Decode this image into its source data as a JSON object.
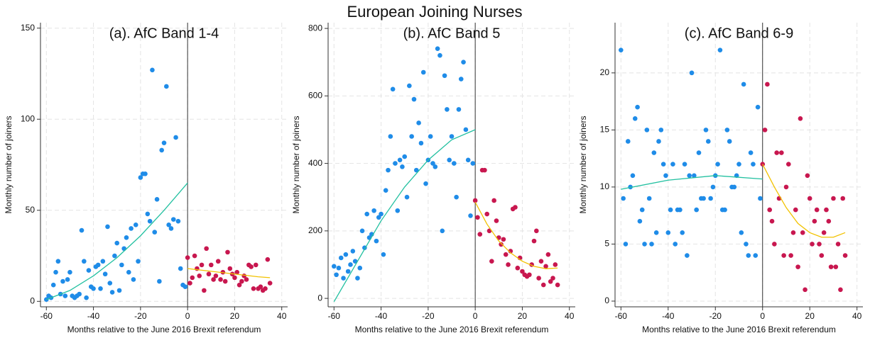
{
  "title": "European Joining Nurses",
  "chart_data": [
    {
      "type": "scatter",
      "title": "(a). AfC Band 1-4",
      "xlabel": "Months relative to the June 2016 Brexit referendum",
      "ylabel": "Monthly number of joiners",
      "xlim": [
        -62.5,
        42.5
      ],
      "ylim": [
        -3,
        153
      ],
      "xticks": [
        -60,
        -40,
        -20,
        0,
        20,
        40
      ],
      "yticks": [
        0,
        50,
        100,
        150
      ],
      "grid": true,
      "cutoff": 0,
      "series": [
        {
          "mark": "point",
          "color": "#1f8ce8",
          "x": [
            -60,
            -59,
            -58,
            -57,
            -56,
            -55,
            -54,
            -53,
            -52,
            -51,
            -50,
            -49,
            -48,
            -47,
            -46,
            -45,
            -44,
            -43,
            -42,
            -41,
            -40,
            -39,
            -38,
            -37,
            -36,
            -35,
            -34,
            -33,
            -32,
            -31,
            -30,
            -29,
            -28,
            -27,
            -26,
            -25,
            -24,
            -23,
            -22,
            -21,
            -20,
            -19,
            -18,
            -17,
            -16,
            -15,
            -14,
            -13,
            -12,
            -11,
            -10,
            -9,
            -8,
            -7,
            -6,
            -5,
            -4,
            -3,
            -2,
            -1
          ],
          "values": [
            1,
            3,
            2,
            9,
            16,
            22,
            4,
            11,
            3,
            12,
            16,
            3,
            2,
            3,
            4,
            39,
            22,
            2,
            17,
            8,
            7,
            19,
            20,
            7,
            22,
            15,
            41,
            10,
            5,
            25,
            32,
            6,
            20,
            29,
            35,
            16,
            40,
            12,
            42,
            22,
            68,
            70,
            70,
            48,
            44,
            127,
            38,
            56,
            11,
            83,
            87,
            118,
            42,
            40,
            45,
            90,
            44,
            18,
            9,
            8
          ]
        },
        {
          "mark": "point",
          "color": "#c8174f",
          "x": [
            0,
            1,
            2,
            3,
            4,
            5,
            6,
            7,
            8,
            9,
            10,
            11,
            12,
            13,
            14,
            15,
            16,
            17,
            18,
            19,
            20,
            21,
            22,
            23,
            24,
            25,
            26,
            27,
            28,
            29,
            30,
            31,
            32,
            33,
            34,
            35
          ],
          "values": [
            24,
            10,
            13,
            25,
            18,
            14,
            20,
            6,
            29,
            15,
            20,
            12,
            14,
            22,
            12,
            16,
            11,
            27,
            18,
            15,
            13,
            16,
            9,
            11,
            14,
            12,
            20,
            19,
            7,
            20,
            7,
            8,
            6,
            7,
            23,
            10
          ]
        },
        {
          "mark": "line",
          "color": "#22c0a0",
          "x": [
            -60,
            -50,
            -40,
            -30,
            -20,
            -10,
            0
          ],
          "values": [
            1,
            6,
            14,
            24,
            36,
            50,
            65
          ]
        },
        {
          "mark": "line",
          "color": "#f2c200",
          "x": [
            0,
            10,
            20,
            30,
            35
          ],
          "values": [
            18,
            16.5,
            15,
            13.5,
            13
          ]
        }
      ]
    },
    {
      "type": "scatter",
      "title": "(b). AfC Band 5",
      "xlabel": "Months relative to the June 2016 Brexit referendum",
      "ylabel": "Monthly number of joiners",
      "xlim": [
        -62.5,
        42.5
      ],
      "ylim": [
        -25,
        817
      ],
      "xticks": [
        -60,
        -40,
        -20,
        0,
        20,
        40
      ],
      "yticks": [
        0,
        200,
        400,
        600,
        800
      ],
      "grid": true,
      "cutoff": 0,
      "series": [
        {
          "mark": "point",
          "color": "#1f8ce8",
          "x": [
            -60,
            -59,
            -58,
            -57,
            -56,
            -55,
            -54,
            -53,
            -52,
            -51,
            -50,
            -49,
            -48,
            -47,
            -46,
            -45,
            -44,
            -43,
            -42,
            -41,
            -40,
            -39,
            -38,
            -37,
            -36,
            -35,
            -34,
            -33,
            -32,
            -31,
            -30,
            -29,
            -28,
            -27,
            -26,
            -25,
            -24,
            -23,
            -22,
            -21,
            -20,
            -19,
            -18,
            -17,
            -16,
            -15,
            -14,
            -13,
            -12,
            -11,
            -10,
            -9,
            -8,
            -7,
            -6,
            -5,
            -4,
            -3,
            -2,
            -1
          ],
          "values": [
            95,
            70,
            90,
            120,
            60,
            130,
            80,
            100,
            140,
            110,
            60,
            90,
            200,
            150,
            250,
            180,
            190,
            260,
            170,
            240,
            250,
            130,
            320,
            380,
            480,
            620,
            400,
            260,
            410,
            390,
            420,
            300,
            630,
            480,
            590,
            380,
            520,
            460,
            670,
            340,
            410,
            480,
            400,
            390,
            740,
            720,
            200,
            660,
            560,
            410,
            480,
            400,
            300,
            560,
            650,
            700,
            500,
            410,
            245,
            400
          ]
        },
        {
          "mark": "point",
          "color": "#c8174f",
          "x": [
            0,
            1,
            2,
            3,
            4,
            5,
            6,
            7,
            8,
            9,
            10,
            11,
            12,
            13,
            14,
            15,
            16,
            17,
            18,
            19,
            20,
            21,
            22,
            23,
            24,
            25,
            26,
            27,
            28,
            29,
            30,
            31,
            32,
            33,
            34,
            35
          ],
          "values": [
            290,
            240,
            190,
            380,
            380,
            250,
            200,
            110,
            290,
            230,
            180,
            160,
            175,
            130,
            100,
            140,
            265,
            270,
            90,
            120,
            80,
            70,
            65,
            70,
            100,
            170,
            200,
            60,
            110,
            40,
            95,
            130,
            50,
            60,
            100,
            40
          ]
        },
        {
          "mark": "line",
          "color": "#22c0a0",
          "x": [
            -60,
            -50,
            -40,
            -30,
            -20,
            -10,
            0
          ],
          "values": [
            -10,
            110,
            230,
            330,
            410,
            470,
            500
          ]
        },
        {
          "mark": "line",
          "color": "#f2c200",
          "x": [
            0,
            5,
            10,
            15,
            20,
            25,
            30,
            35
          ],
          "values": [
            285,
            220,
            170,
            135,
            110,
            95,
            88,
            90
          ]
        }
      ]
    },
    {
      "type": "scatter",
      "title": "(c). AfC Band 6-9",
      "xlabel": "Months relative to the June 2016 Brexit referendum",
      "ylabel": "Monthly number of joiners",
      "xlim": [
        -62.5,
        42.5
      ],
      "ylim": [
        -0.5,
        24.4
      ],
      "xticks": [
        -60,
        -40,
        -20,
        0,
        20,
        40
      ],
      "yticks": [
        0,
        5,
        10,
        15,
        20
      ],
      "grid": true,
      "cutoff": 0,
      "series": [
        {
          "mark": "point",
          "color": "#1f8ce8",
          "x": [
            -60,
            -59,
            -58,
            -57,
            -56,
            -55,
            -54,
            -53,
            -52,
            -51,
            -50,
            -49,
            -48,
            -47,
            -46,
            -45,
            -44,
            -43,
            -42,
            -41,
            -40,
            -39,
            -38,
            -37,
            -36,
            -35,
            -34,
            -33,
            -32,
            -31,
            -30,
            -29,
            -28,
            -27,
            -26,
            -25,
            -24,
            -23,
            -22,
            -21,
            -20,
            -19,
            -18,
            -17,
            -16,
            -15,
            -14,
            -13,
            -12,
            -11,
            -10,
            -9,
            -8,
            -7,
            -6,
            -5,
            -4,
            -3,
            -2,
            -1
          ],
          "values": [
            22,
            9,
            5,
            14,
            10,
            11,
            16,
            17,
            7,
            8,
            5,
            15,
            9,
            5,
            13,
            6,
            14,
            15,
            12,
            11,
            6,
            8,
            12,
            5,
            8,
            8,
            6,
            12,
            4,
            11,
            20,
            11,
            8,
            13,
            9,
            9,
            15,
            14,
            9,
            10,
            11,
            12,
            22,
            8,
            8,
            15,
            14,
            10,
            10,
            11,
            12,
            6,
            19,
            5,
            4,
            13,
            12,
            4,
            17,
            9
          ]
        },
        {
          "mark": "point",
          "color": "#c8174f",
          "x": [
            0,
            1,
            2,
            3,
            4,
            5,
            6,
            7,
            8,
            9,
            10,
            11,
            12,
            13,
            14,
            15,
            16,
            17,
            18,
            19,
            20,
            21,
            22,
            23,
            24,
            25,
            26,
            27,
            28,
            29,
            30,
            31,
            32,
            33,
            34,
            35
          ],
          "values": [
            12,
            15,
            19,
            8,
            7,
            5,
            13,
            9,
            13,
            4,
            10,
            12,
            4,
            6,
            8,
            3,
            16,
            6,
            1,
            11,
            9,
            5,
            7,
            8,
            5,
            4,
            6,
            8,
            7,
            3,
            9,
            3,
            5,
            1,
            9,
            4
          ]
        },
        {
          "mark": "line",
          "color": "#22c0a0",
          "x": [
            -60,
            -40,
            -20,
            0
          ],
          "values": [
            9.8,
            10.6,
            11,
            10.7
          ]
        },
        {
          "mark": "line",
          "color": "#f2c200",
          "x": [
            0,
            5,
            10,
            15,
            20,
            25,
            30,
            35
          ],
          "values": [
            12,
            10,
            8.2,
            6.8,
            6,
            5.6,
            5.6,
            6
          ]
        }
      ]
    }
  ]
}
